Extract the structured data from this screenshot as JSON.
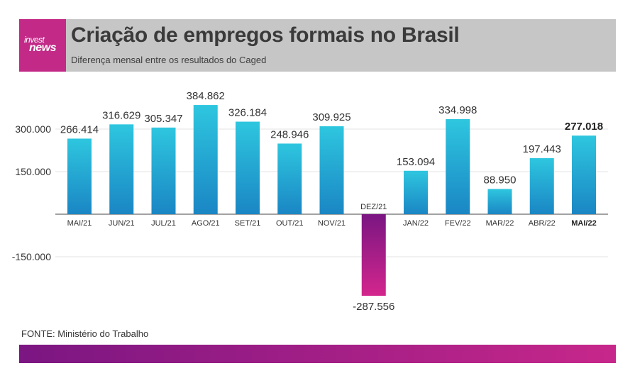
{
  "header": {
    "logo_line1": "invest",
    "logo_line2": "news",
    "title": "Criação de empregos formais no Brasil",
    "subtitle": "Diferença mensal entre os resultados do Caged"
  },
  "source": "FONTE: Ministério do Trabalho",
  "colors": {
    "positive_top": "#2ec6df",
    "positive_bottom": "#1a86c4",
    "negative_top": "#7a1682",
    "negative_bottom": "#d3268d",
    "header_bg": "#c6c6c6",
    "logo_bg": "#c32a87"
  },
  "chart_data": {
    "type": "bar",
    "categories": [
      "MAI/21",
      "JUN/21",
      "JUL/21",
      "AGO/21",
      "SET/21",
      "OUT/21",
      "NOV/21",
      "DEZ/21",
      "JAN/22",
      "FEV/22",
      "MAR/22",
      "ABR/22",
      "MAI/22"
    ],
    "values": [
      266414,
      316629,
      305347,
      384862,
      326184,
      248946,
      309925,
      -287556,
      153094,
      334998,
      88950,
      197443,
      277018
    ],
    "value_labels": [
      "266.414",
      "316.629",
      "305.347",
      "384.862",
      "326.184",
      "248.946",
      "309.925",
      "-287.556",
      "153.094",
      "334.998",
      "88.950",
      "197.443",
      "277.018"
    ],
    "highlight_index": 12,
    "yticks": [
      300000,
      150000,
      -150000
    ],
    "ytick_labels": [
      "300.000",
      "150.000",
      "-150.000"
    ],
    "ylim": [
      -300000,
      400000
    ],
    "grid": true,
    "xlabel": "",
    "ylabel": ""
  }
}
